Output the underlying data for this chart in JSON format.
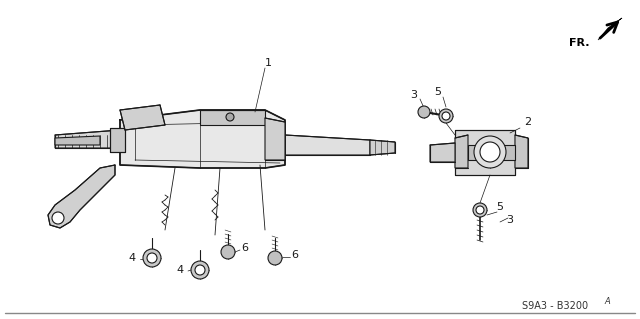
{
  "bg_color": "#ffffff",
  "line_color": "#1a1a1a",
  "label_color": "#1a1a1a",
  "part_code": "S9A3 - B3200",
  "part_code_suffix": "A",
  "fr_label": "FR.",
  "figsize": [
    6.4,
    3.19
  ],
  "dpi": 100,
  "border_color": "#cccccc",
  "gray_fill": "#c8c8c8",
  "light_fill": "#e8e8e8",
  "mid_fill": "#d8d8d8"
}
